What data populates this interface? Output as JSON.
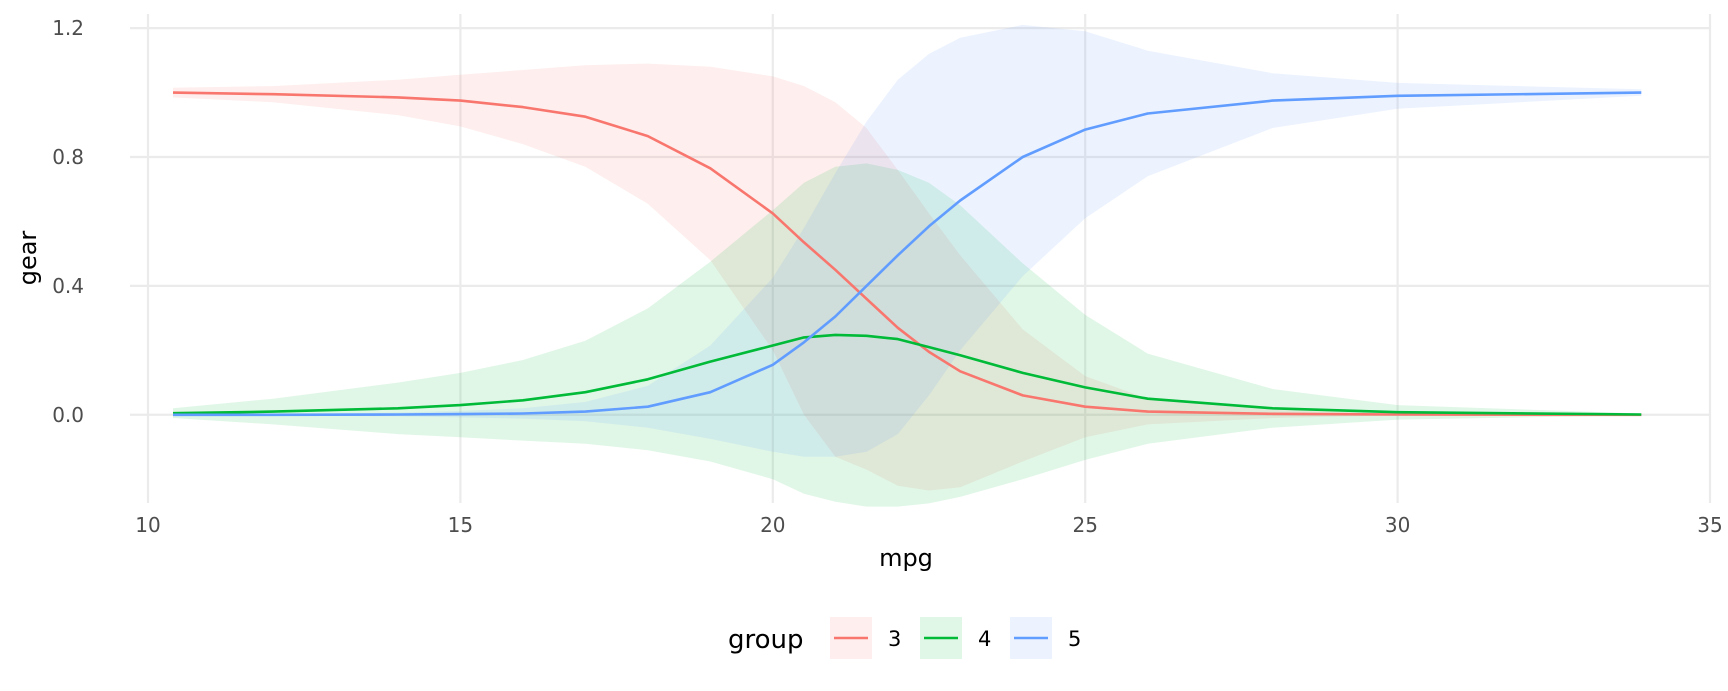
{
  "chart_data": {
    "type": "line",
    "xlabel": "mpg",
    "ylabel": "gear",
    "xlim": [
      10,
      35
    ],
    "ylim": [
      -0.28,
      1.25
    ],
    "x_ticks": [
      10,
      15,
      20,
      25,
      30,
      35
    ],
    "y_ticks": [
      0.0,
      0.4,
      0.8,
      1.2
    ],
    "x_tick_labels": [
      "10",
      "15",
      "20",
      "25",
      "30",
      "35"
    ],
    "y_tick_labels": [
      "0.0",
      "0.4",
      "0.8",
      "1.2"
    ],
    "grid": true,
    "legend": {
      "title": "group",
      "position": "bottom"
    },
    "series": [
      {
        "name": "3",
        "color": "#F8766D",
        "x": [
          10.4,
          12,
          14,
          15,
          16,
          17,
          18,
          19,
          20,
          20.5,
          21,
          21.5,
          22,
          22.5,
          23,
          24,
          25,
          26,
          28,
          30,
          33.9
        ],
        "y": [
          1.0,
          0.995,
          0.985,
          0.975,
          0.955,
          0.925,
          0.865,
          0.765,
          0.625,
          0.535,
          0.45,
          0.36,
          0.27,
          0.195,
          0.135,
          0.06,
          0.025,
          0.01,
          0.003,
          0.001,
          0.0
        ],
        "lower": [
          0.985,
          0.97,
          0.93,
          0.895,
          0.84,
          0.77,
          0.655,
          0.48,
          0.2,
          0.0,
          -0.13,
          -0.17,
          -0.22,
          -0.235,
          -0.225,
          -0.145,
          -0.07,
          -0.03,
          -0.01,
          -0.002,
          -0.001
        ],
        "upper": [
          1.015,
          1.02,
          1.04,
          1.055,
          1.07,
          1.085,
          1.09,
          1.08,
          1.05,
          1.02,
          0.97,
          0.89,
          0.76,
          0.625,
          0.495,
          0.265,
          0.12,
          0.05,
          0.015,
          0.004,
          0.001
        ]
      },
      {
        "name": "4",
        "color": "#00BA38",
        "x": [
          10.4,
          12,
          14,
          15,
          16,
          17,
          18,
          19,
          20,
          20.5,
          21,
          21.5,
          22,
          22.5,
          23,
          24,
          25,
          26,
          28,
          30,
          33.9
        ],
        "y": [
          0.005,
          0.01,
          0.02,
          0.03,
          0.045,
          0.07,
          0.11,
          0.165,
          0.215,
          0.24,
          0.248,
          0.245,
          0.235,
          0.21,
          0.185,
          0.13,
          0.085,
          0.05,
          0.02,
          0.008,
          0.001
        ],
        "lower": [
          -0.01,
          -0.03,
          -0.06,
          -0.07,
          -0.08,
          -0.09,
          -0.11,
          -0.145,
          -0.2,
          -0.245,
          -0.27,
          -0.285,
          -0.285,
          -0.275,
          -0.255,
          -0.2,
          -0.14,
          -0.09,
          -0.04,
          -0.015,
          -0.002
        ],
        "upper": [
          0.02,
          0.05,
          0.1,
          0.13,
          0.17,
          0.23,
          0.33,
          0.475,
          0.635,
          0.72,
          0.77,
          0.78,
          0.76,
          0.72,
          0.65,
          0.47,
          0.31,
          0.19,
          0.08,
          0.03,
          0.004
        ]
      },
      {
        "name": "5",
        "color": "#619CFF",
        "x": [
          10.4,
          12,
          14,
          15,
          16,
          17,
          18,
          19,
          20,
          20.5,
          21,
          21.5,
          22,
          22.5,
          23,
          24,
          25,
          26,
          28,
          30,
          33.9
        ],
        "y": [
          0.0,
          0.0,
          0.001,
          0.002,
          0.004,
          0.01,
          0.025,
          0.07,
          0.155,
          0.225,
          0.305,
          0.4,
          0.495,
          0.585,
          0.665,
          0.8,
          0.885,
          0.935,
          0.975,
          0.99,
          1.0
        ],
        "lower": [
          -0.001,
          -0.002,
          -0.005,
          -0.008,
          -0.012,
          -0.02,
          -0.04,
          -0.075,
          -0.115,
          -0.13,
          -0.13,
          -0.115,
          -0.06,
          0.06,
          0.2,
          0.43,
          0.61,
          0.74,
          0.89,
          0.95,
          0.99
        ],
        "upper": [
          0.001,
          0.002,
          0.007,
          0.012,
          0.02,
          0.04,
          0.09,
          0.215,
          0.425,
          0.58,
          0.75,
          0.91,
          1.04,
          1.12,
          1.17,
          1.21,
          1.19,
          1.13,
          1.06,
          1.03,
          1.01
        ]
      }
    ]
  }
}
